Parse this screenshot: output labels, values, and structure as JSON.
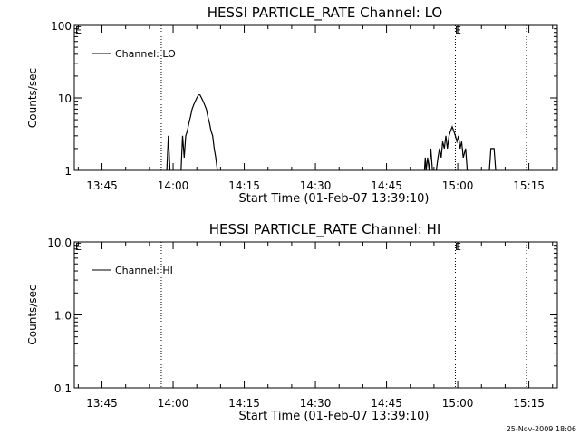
{
  "figure": {
    "stamp": "25-Nov-2009 18:06"
  },
  "colors": {
    "axes": "#000000",
    "series": "#000000",
    "background": "#ffffff"
  },
  "chart_data": [
    {
      "type": "line",
      "title": "HESSI PARTICLE_RATE Channel: LO",
      "xlabel": "Start Time (01-Feb-07 13:39:10)",
      "ylabel": "Counts/sec",
      "yscale": "log",
      "ylim": [
        1,
        100
      ],
      "yticks": [
        1,
        10,
        100
      ],
      "ytick_labels": [
        "1",
        "10",
        "100"
      ],
      "xlim": [
        "13:39:10",
        "15:21:00"
      ],
      "xticks": [
        "13:45",
        "14:00",
        "14:15",
        "14:30",
        "14:45",
        "15:00",
        "15:15"
      ],
      "grid": false,
      "legend": {
        "entries": [
          "Channel: LO"
        ],
        "placement": "top-left"
      },
      "vlines": [
        {
          "x": "13:57:30",
          "label": ""
        },
        {
          "x": "14:59:30",
          "label": "E"
        },
        {
          "x": "15:14:30",
          "label": ""
        }
      ],
      "start_marker": "E",
      "series": [
        {
          "name": "Channel: LO",
          "segments": [
            [
              [
                "13:58:40",
                0.8
              ],
              [
                "13:59:00",
                3.0
              ],
              [
                "13:59:20",
                0.8
              ]
            ],
            [
              [
                "14:01:40",
                0.8
              ],
              [
                "14:02:00",
                3.0
              ],
              [
                "14:02:20",
                1.5
              ],
              [
                "14:02:40",
                3.0
              ],
              [
                "14:03:00",
                3.5
              ],
              [
                "14:03:20",
                4.5
              ],
              [
                "14:03:40",
                5.5
              ],
              [
                "14:04:00",
                7.0
              ],
              [
                "14:04:20",
                8.0
              ],
              [
                "14:04:40",
                9.0
              ],
              [
                "14:05:00",
                10.0
              ],
              [
                "14:05:20",
                11.0
              ],
              [
                "14:05:40",
                11.0
              ],
              [
                "14:06:00",
                10.0
              ],
              [
                "14:06:20",
                9.0
              ],
              [
                "14:06:40",
                8.0
              ],
              [
                "14:07:00",
                7.0
              ],
              [
                "14:07:20",
                5.5
              ],
              [
                "14:07:40",
                4.5
              ],
              [
                "14:08:00",
                3.5
              ],
              [
                "14:08:20",
                3.0
              ],
              [
                "14:08:40",
                2.0
              ],
              [
                "14:09:00",
                1.5
              ],
              [
                "14:09:20",
                0.8
              ]
            ],
            [
              [
                "14:53:00",
                0.8
              ],
              [
                "14:53:10",
                1.5
              ],
              [
                "14:53:20",
                0.8
              ],
              [
                "14:53:40",
                1.5
              ],
              [
                "14:54:00",
                0.8
              ],
              [
                "14:54:20",
                2.0
              ],
              [
                "14:54:40",
                0.8
              ]
            ],
            [
              [
                "14:55:30",
                0.8
              ],
              [
                "14:55:50",
                1.5
              ],
              [
                "14:56:10",
                2.0
              ],
              [
                "14:56:30",
                1.5
              ],
              [
                "14:56:50",
                2.5
              ],
              [
                "14:57:10",
                2.0
              ],
              [
                "14:57:30",
                3.0
              ],
              [
                "14:57:50",
                2.0
              ],
              [
                "14:58:10",
                3.0
              ],
              [
                "14:58:30",
                3.5
              ],
              [
                "14:58:50",
                4.0
              ],
              [
                "14:59:10",
                3.5
              ],
              [
                "14:59:30",
                3.0
              ],
              [
                "14:59:50",
                2.5
              ],
              [
                "15:00:10",
                3.0
              ],
              [
                "15:00:30",
                2.0
              ],
              [
                "15:00:50",
                2.5
              ],
              [
                "15:01:10",
                1.5
              ],
              [
                "15:01:40",
                2.0
              ],
              [
                "15:02:00",
                0.8
              ]
            ],
            [
              [
                "15:06:40",
                0.8
              ],
              [
                "15:07:00",
                2.0
              ],
              [
                "15:07:40",
                2.0
              ],
              [
                "15:08:00",
                0.8
              ]
            ]
          ]
        }
      ]
    },
    {
      "type": "line",
      "title": "HESSI PARTICLE_RATE Channel: HI",
      "xlabel": "Start Time (01-Feb-07 13:39:10)",
      "ylabel": "Counts/sec",
      "yscale": "log",
      "ylim": [
        0.1,
        10
      ],
      "yticks": [
        0.1,
        1,
        10
      ],
      "ytick_labels": [
        "0.1",
        "1.0",
        "10.0"
      ],
      "xlim": [
        "13:39:10",
        "15:21:00"
      ],
      "xticks": [
        "13:45",
        "14:00",
        "14:15",
        "14:30",
        "14:45",
        "15:00",
        "15:15"
      ],
      "grid": false,
      "legend": {
        "entries": [
          "Channel: HI"
        ],
        "placement": "top-left"
      },
      "vlines": [
        {
          "x": "13:57:30",
          "label": ""
        },
        {
          "x": "14:59:30",
          "label": "E"
        },
        {
          "x": "15:14:30",
          "label": ""
        }
      ],
      "start_marker": "E",
      "series": [
        {
          "name": "Channel: HI",
          "segments": []
        }
      ]
    }
  ]
}
